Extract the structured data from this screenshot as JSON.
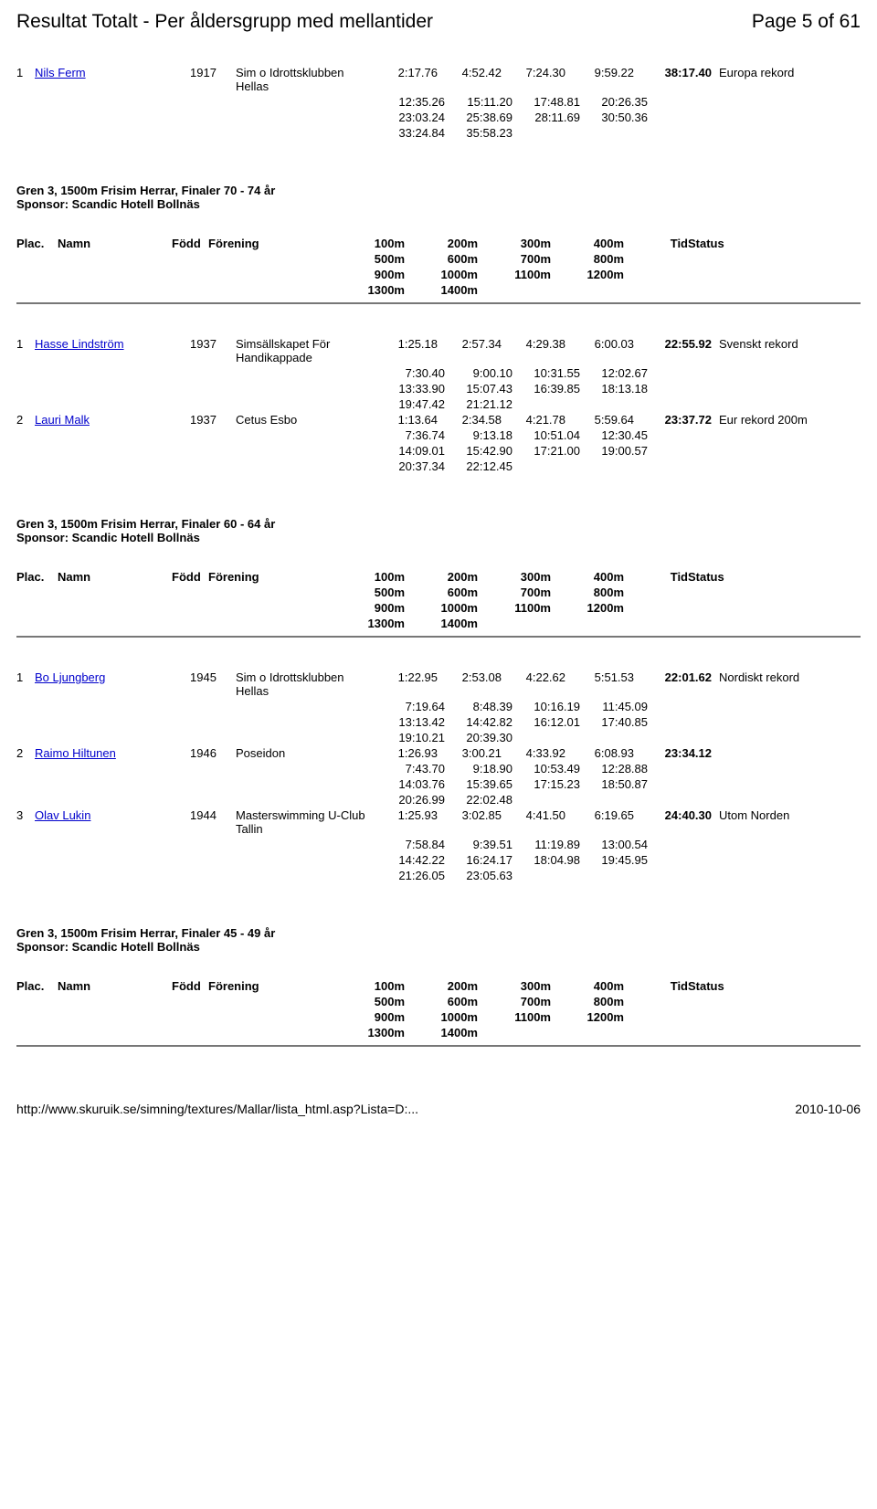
{
  "header": {
    "title": "Resultat Totalt - Per åldersgrupp med mellantider",
    "pager": "Page 5 of 61"
  },
  "footer": {
    "url": "http://www.skuruik.se/simning/textures/Mallar/lista_html.asp?Lista=D:...",
    "date": "2010-10-06"
  },
  "col_headers": {
    "plac": "Plac.",
    "namn": "Namn",
    "fodd": "Född",
    "forening": "Förening",
    "tid": "Tid",
    "status": "Status",
    "r1": [
      "100m",
      "200m",
      "300m",
      "400m"
    ],
    "r2": [
      "500m",
      "600m",
      "700m",
      "800m"
    ],
    "r3": [
      "900m",
      "1000m",
      "1100m",
      "1200m"
    ],
    "r4": [
      "1300m",
      "1400m",
      "",
      ""
    ]
  },
  "top_block": {
    "rows": [
      {
        "plc": "1",
        "name": "Nils Ferm",
        "year": "1917",
        "club": "Sim o Idrottsklubben Hellas",
        "s": [
          "2:17.76",
          "4:52.42",
          "7:24.30",
          "9:59.22"
        ],
        "total": "38:17.40",
        "status": "Europa rekord",
        "splits": [
          [
            "12:35.26",
            "15:11.20",
            "17:48.81",
            "20:26.35"
          ],
          [
            "23:03.24",
            "25:38.69",
            "28:11.69",
            "30:50.36"
          ],
          [
            "33:24.84",
            "35:58.23",
            "",
            ""
          ]
        ]
      }
    ]
  },
  "sections": [
    {
      "title": "Gren 3, 1500m Frisim Herrar, Finaler 70 - 74 år",
      "sponsor": "Sponsor: Scandic Hotell Bollnäs",
      "rows": [
        {
          "plc": "1",
          "name": "Hasse Lindström",
          "year": "1937",
          "club": "Simsällskapet För Handikappade",
          "s": [
            "1:25.18",
            "2:57.34",
            "4:29.38",
            "6:00.03"
          ],
          "total": "22:55.92",
          "status": "Svenskt rekord",
          "splits": [
            [
              "7:30.40",
              "9:00.10",
              "10:31.55",
              "12:02.67"
            ],
            [
              "13:33.90",
              "15:07.43",
              "16:39.85",
              "18:13.18"
            ],
            [
              "19:47.42",
              "21:21.12",
              "",
              ""
            ]
          ]
        },
        {
          "plc": "2",
          "name": "Lauri Malk",
          "year": "1937",
          "club": "Cetus Esbo",
          "s": [
            "1:13.64",
            "2:34.58",
            "4:21.78",
            "5:59.64"
          ],
          "total": "23:37.72",
          "status": "Eur rekord 200m",
          "splits": [
            [
              "7:36.74",
              "9:13.18",
              "10:51.04",
              "12:30.45"
            ],
            [
              "14:09.01",
              "15:42.90",
              "17:21.00",
              "19:00.57"
            ],
            [
              "20:37.34",
              "22:12.45",
              "",
              ""
            ]
          ]
        }
      ]
    },
    {
      "title": "Gren 3, 1500m Frisim Herrar, Finaler 60 - 64 år",
      "sponsor": "Sponsor: Scandic Hotell Bollnäs",
      "rows": [
        {
          "plc": "1",
          "name": "Bo Ljungberg",
          "year": "1945",
          "club": "Sim o Idrottsklubben Hellas",
          "s": [
            "1:22.95",
            "2:53.08",
            "4:22.62",
            "5:51.53"
          ],
          "total": "22:01.62",
          "status": "Nordiskt rekord",
          "splits": [
            [
              "7:19.64",
              "8:48.39",
              "10:16.19",
              "11:45.09"
            ],
            [
              "13:13.42",
              "14:42.82",
              "16:12.01",
              "17:40.85"
            ],
            [
              "19:10.21",
              "20:39.30",
              "",
              ""
            ]
          ]
        },
        {
          "plc": "2",
          "name": "Raimo Hiltunen",
          "year": "1946",
          "club": "Poseidon",
          "s": [
            "1:26.93",
            "3:00.21",
            "4:33.92",
            "6:08.93"
          ],
          "total": "23:34.12",
          "status": "",
          "splits": [
            [
              "7:43.70",
              "9:18.90",
              "10:53.49",
              "12:28.88"
            ],
            [
              "14:03.76",
              "15:39.65",
              "17:15.23",
              "18:50.87"
            ],
            [
              "20:26.99",
              "22:02.48",
              "",
              ""
            ]
          ]
        },
        {
          "plc": "3",
          "name": "Olav Lukin",
          "year": "1944",
          "club": "Masterswimming U-Club Tallin",
          "s": [
            "1:25.93",
            "3:02.85",
            "4:41.50",
            "6:19.65"
          ],
          "total": "24:40.30",
          "status": "Utom Norden",
          "splits": [
            [
              "7:58.84",
              "9:39.51",
              "11:19.89",
              "13:00.54"
            ],
            [
              "14:42.22",
              "16:24.17",
              "18:04.98",
              "19:45.95"
            ],
            [
              "21:26.05",
              "23:05.63",
              "",
              ""
            ]
          ]
        }
      ]
    },
    {
      "title": "Gren 3, 1500m Frisim Herrar, Finaler 45 - 49 år",
      "sponsor": "Sponsor: Scandic Hotell Bollnäs",
      "rows": []
    }
  ]
}
